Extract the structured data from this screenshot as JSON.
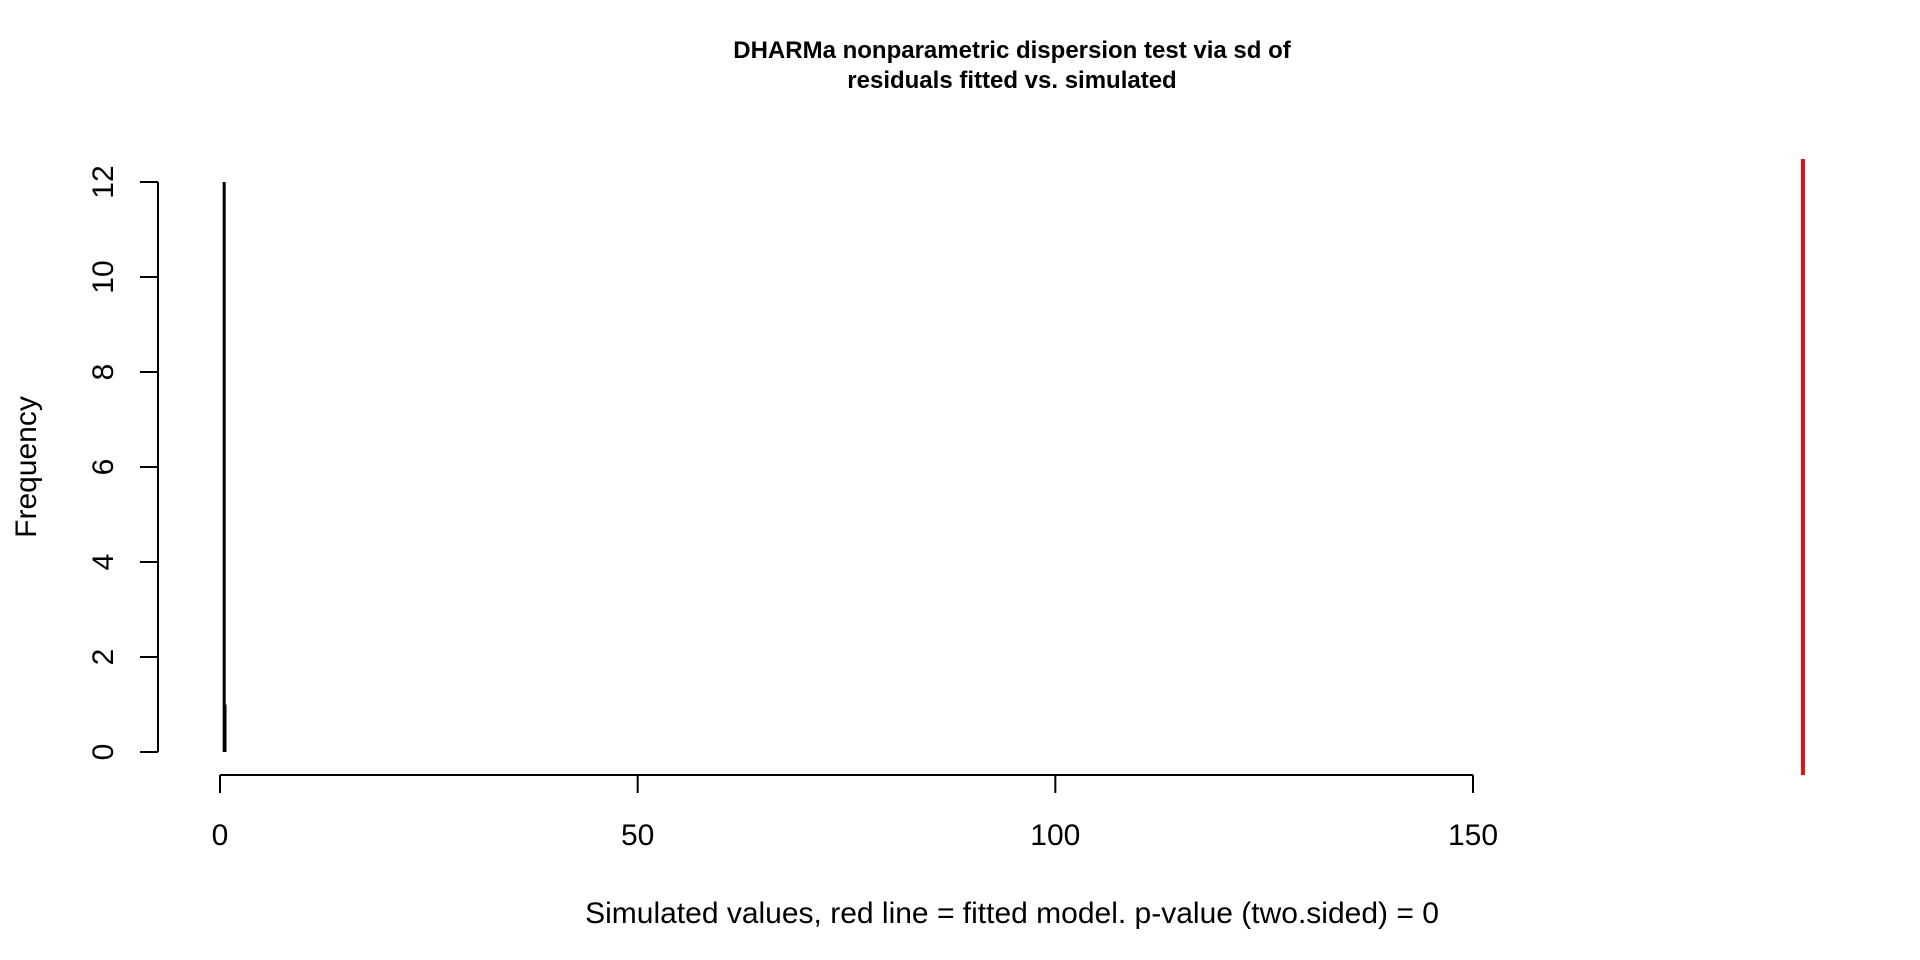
{
  "chart_data": {
    "type": "bar",
    "title_lines": [
      "DHARMa nonparametric dispersion test via sd of",
      "residuals fitted vs. simulated"
    ],
    "xlabel": "Simulated values, red line = fitted model. p-value (two.sided) = 0",
    "ylabel": "Frequency",
    "xlim": [
      0,
      150
    ],
    "ylim": [
      0,
      12
    ],
    "x_ticks": [
      0,
      50,
      100,
      150
    ],
    "x_tick_labels": [
      "0",
      "50",
      "100",
      "150"
    ],
    "y_ticks": [
      0,
      2,
      4,
      6,
      8,
      10,
      12
    ],
    "y_tick_labels": [
      "0",
      "2",
      "4",
      "6",
      "8",
      "10",
      "12"
    ],
    "bars": [
      {
        "x": 0.5,
        "count": 12
      },
      {
        "x": 0.6,
        "count": 1
      }
    ],
    "reference_line": {
      "x": 189.5,
      "color": "#dd1111"
    },
    "bar_color": "#000000",
    "grid": false,
    "legend": "none"
  }
}
